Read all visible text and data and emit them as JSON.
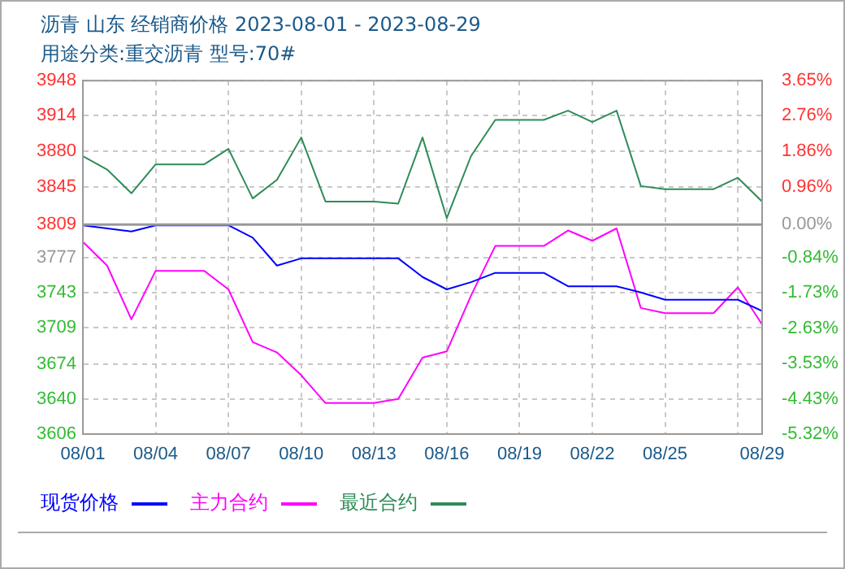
{
  "chart_data": {
    "type": "line",
    "title": "沥青 山东 经销商价格 2023-08-01 - 2023-08-29",
    "subtitle": "用途分类:重交沥青 型号:70#",
    "x": [
      "2023-08-01",
      "2023-08-02",
      "2023-08-03",
      "2023-08-04",
      "2023-08-05",
      "2023-08-06",
      "2023-08-07",
      "2023-08-08",
      "2023-08-09",
      "2023-08-10",
      "2023-08-11",
      "2023-08-12",
      "2023-08-13",
      "2023-08-14",
      "2023-08-15",
      "2023-08-16",
      "2023-08-17",
      "2023-08-18",
      "2023-08-19",
      "2023-08-20",
      "2023-08-21",
      "2023-08-22",
      "2023-08-23",
      "2023-08-24",
      "2023-08-25",
      "2023-08-26",
      "2023-08-27",
      "2023-08-28",
      "2023-08-29"
    ],
    "series": [
      {
        "name": "现货价格",
        "color": "#0000ff",
        "values": [
          3808,
          3805,
          3802,
          3808,
          3808,
          3808,
          3808,
          3796,
          3769,
          3776,
          3776,
          3776,
          3776,
          3776,
          3758,
          3746,
          3753,
          3762,
          3762,
          3762,
          3749,
          3749,
          3749,
          3743,
          3736,
          3736,
          3736,
          3736,
          3725
        ]
      },
      {
        "name": "主力合约",
        "color": "#ff00ff",
        "values": [
          3792,
          3769,
          3717,
          3764,
          3764,
          3764,
          3746,
          3695,
          3685,
          3663,
          3636,
          3636,
          3636,
          3640,
          3680,
          3686,
          3740,
          3788,
          3788,
          3788,
          3803,
          3793,
          3805,
          3728,
          3723,
          3723,
          3723,
          3748,
          3712
        ]
      },
      {
        "name": "最近合约",
        "color": "#2e8b57",
        "values": [
          3875,
          3862,
          3839,
          3867,
          3867,
          3867,
          3882,
          3834,
          3852,
          3893,
          3831,
          3831,
          3831,
          3829,
          3893,
          3815,
          3875,
          3910,
          3910,
          3910,
          3919,
          3908,
          3919,
          3846,
          3843,
          3843,
          3843,
          3854,
          3831
        ]
      }
    ],
    "xlim": [
      "2023-08-01",
      "2023-08-29"
    ],
    "xticks": [
      {
        "value": "2023-08-01",
        "label": "08/01"
      },
      {
        "value": "2023-08-04",
        "label": "08/04"
      },
      {
        "value": "2023-08-07",
        "label": "08/07"
      },
      {
        "value": "2023-08-10",
        "label": "08/10"
      },
      {
        "value": "2023-08-13",
        "label": "08/13"
      },
      {
        "value": "2023-08-16",
        "label": "08/16"
      },
      {
        "value": "2023-08-19",
        "label": "08/19"
      },
      {
        "value": "2023-08-22",
        "label": "08/22"
      },
      {
        "value": "2023-08-25",
        "label": "08/25"
      },
      {
        "value": "2023-08-28",
        "label": null
      },
      {
        "value": "2023-08-29",
        "label": "08/29"
      }
    ],
    "ylim": [
      3606,
      3948
    ],
    "yticks": [
      3606,
      3640,
      3674,
      3709,
      3743,
      3777,
      3809,
      3845,
      3880,
      3914,
      3948
    ],
    "y2lim": [
      -5.32,
      3.65
    ],
    "y2ticks": [
      {
        "value": -5.32,
        "label": "-5.32%"
      },
      {
        "value": -4.43,
        "label": "-4.43%"
      },
      {
        "value": -3.53,
        "label": "-3.53%"
      },
      {
        "value": -2.63,
        "label": "-2.63%"
      },
      {
        "value": -1.73,
        "label": "-1.73%"
      },
      {
        "value": -0.84,
        "label": "-0.84%"
      },
      {
        "value": 0,
        "label": "0.00%"
      },
      {
        "value": 0.96,
        "label": "0.96%"
      },
      {
        "value": 1.86,
        "label": "1.86%"
      },
      {
        "value": 2.76,
        "label": "2.76%"
      },
      {
        "value": 3.65,
        "label": "3.65%"
      }
    ],
    "ref_lines": [
      {
        "axis": "y2",
        "value": 0,
        "color": "#999999"
      }
    ],
    "grid": true,
    "legend": "bottom",
    "marker": "none",
    "line_style": "solid"
  }
}
